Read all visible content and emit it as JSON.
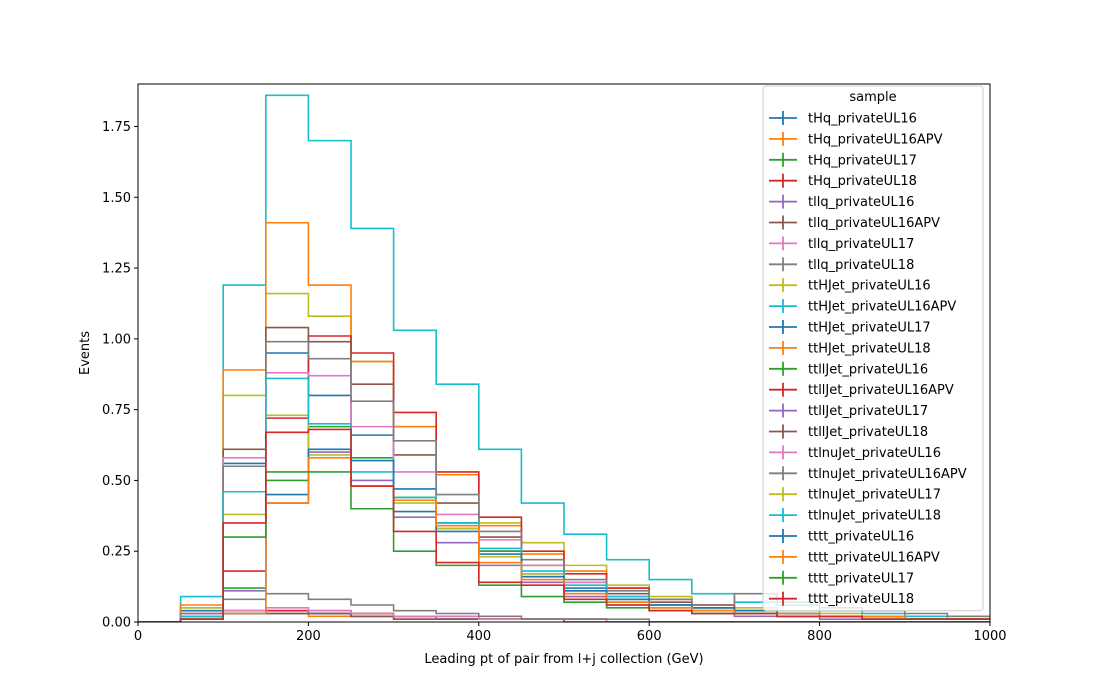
{
  "chart_data": {
    "type": "histogram-step",
    "xlabel": "Leading pt of pair from l+j collection (GeV)",
    "ylabel": "Events",
    "xlim": [
      0,
      1000
    ],
    "ylim": [
      0,
      1.9
    ],
    "x_ticks": [
      0,
      200,
      400,
      600,
      800,
      1000
    ],
    "y_ticks": [
      0.0,
      0.25,
      0.5,
      0.75,
      1.0,
      1.25,
      1.5,
      1.75
    ],
    "x_tick_labels": [
      "0",
      "200",
      "400",
      "600",
      "800",
      "1000"
    ],
    "y_tick_labels": [
      "0.00",
      "0.25",
      "0.50",
      "0.75",
      "1.00",
      "1.25",
      "1.50",
      "1.75"
    ],
    "bin_edges": [
      0,
      50,
      100,
      150,
      200,
      250,
      300,
      350,
      400,
      450,
      500,
      550,
      600,
      650,
      700,
      750,
      800,
      850,
      900,
      950,
      1000
    ],
    "legend_title": "sample",
    "legend_position": "top-right",
    "grid": false,
    "series": [
      {
        "name": "tHq_privateUL16",
        "color": "#1f77b4",
        "values": [
          0,
          0.02,
          0.03,
          0.03,
          0.03,
          0.02,
          0.02,
          0.01,
          0.01,
          0.01,
          0.01,
          0,
          0,
          0,
          0,
          0,
          0,
          0,
          0,
          0
        ]
      },
      {
        "name": "tHq_privateUL16APV",
        "color": "#ff7f0e",
        "values": [
          0,
          0.02,
          0.03,
          0.03,
          0.02,
          0.02,
          0.01,
          0.01,
          0.01,
          0.01,
          0,
          0,
          0,
          0,
          0,
          0,
          0,
          0,
          0,
          0
        ]
      },
      {
        "name": "tHq_privateUL17",
        "color": "#2ca02c",
        "values": [
          0,
          0.02,
          0.04,
          0.04,
          0.03,
          0.03,
          0.02,
          0.01,
          0.01,
          0.01,
          0.01,
          0,
          0,
          0,
          0,
          0,
          0,
          0,
          0,
          0
        ]
      },
      {
        "name": "tHq_privateUL18",
        "color": "#d62728",
        "values": [
          0,
          0.03,
          0.04,
          0.04,
          0.04,
          0.03,
          0.02,
          0.02,
          0.01,
          0.01,
          0.01,
          0,
          0,
          0,
          0,
          0,
          0,
          0,
          0,
          0
        ]
      },
      {
        "name": "tllq_privateUL16",
        "color": "#9467bd",
        "values": [
          0,
          0.02,
          0.03,
          0.03,
          0.03,
          0.02,
          0.02,
          0.01,
          0.01,
          0.01,
          0.01,
          0,
          0,
          0,
          0,
          0,
          0,
          0,
          0,
          0
        ]
      },
      {
        "name": "tllq_privateUL16APV",
        "color": "#8c564b",
        "values": [
          0,
          0.02,
          0.03,
          0.03,
          0.03,
          0.02,
          0.01,
          0.01,
          0.01,
          0.01,
          0,
          0,
          0,
          0,
          0,
          0,
          0,
          0,
          0,
          0
        ]
      },
      {
        "name": "tllq_privateUL17",
        "color": "#e377c2",
        "values": [
          0,
          0.03,
          0.04,
          0.05,
          0.04,
          0.03,
          0.02,
          0.02,
          0.01,
          0.01,
          0.01,
          0,
          0,
          0,
          0,
          0,
          0,
          0,
          0,
          0
        ]
      },
      {
        "name": "tllq_privateUL18",
        "color": "#7f7f7f",
        "values": [
          0,
          0.05,
          0.08,
          0.1,
          0.08,
          0.06,
          0.04,
          0.03,
          0.02,
          0.01,
          0.01,
          0.01,
          0,
          0,
          0,
          0,
          0,
          0,
          0,
          0
        ]
      },
      {
        "name": "ttHJet_privateUL16",
        "color": "#bcbd22",
        "values": [
          0,
          0.05,
          0.8,
          1.16,
          1.08,
          0.92,
          0.69,
          0.52,
          0.35,
          0.28,
          0.2,
          0.13,
          0.09,
          0.06,
          0.05,
          0.04,
          0.03,
          0.02,
          0.02,
          0.01
        ]
      },
      {
        "name": "ttHJet_privateUL16APV",
        "color": "#17becf",
        "values": [
          0,
          0.09,
          1.19,
          1.86,
          1.7,
          1.39,
          1.03,
          0.84,
          0.61,
          0.42,
          0.31,
          0.22,
          0.15,
          0.1,
          0.07,
          0.06,
          0.04,
          0.03,
          0.02,
          0.02
        ]
      },
      {
        "name": "ttHJet_privateUL17",
        "color": "#1f77b4",
        "values": [
          0,
          0.04,
          0.56,
          0.95,
          0.8,
          0.66,
          0.47,
          0.35,
          0.25,
          0.17,
          0.12,
          0.08,
          0.06,
          0.04,
          0.03,
          0.02,
          0.02,
          0.01,
          0.01,
          0.01
        ]
      },
      {
        "name": "ttHJet_privateUL18",
        "color": "#ff7f0e",
        "values": [
          0,
          0.06,
          0.89,
          1.41,
          1.19,
          0.92,
          0.69,
          0.52,
          0.34,
          0.24,
          0.18,
          0.12,
          0.08,
          0.06,
          0.04,
          0.03,
          0.02,
          0.02,
          0.01,
          0.01
        ]
      },
      {
        "name": "ttllJet_privateUL16",
        "color": "#2ca02c",
        "values": [
          0,
          0.01,
          0.12,
          0.5,
          0.69,
          0.58,
          0.44,
          0.33,
          0.25,
          0.16,
          0.11,
          0.07,
          0.05,
          0.04,
          0.03,
          0.02,
          0.02,
          0.01,
          0.01,
          0.01
        ]
      },
      {
        "name": "ttllJet_privateUL16APV",
        "color": "#d62728",
        "values": [
          0,
          0.02,
          0.18,
          0.72,
          1.01,
          0.95,
          0.74,
          0.53,
          0.37,
          0.25,
          0.17,
          0.12,
          0.08,
          0.06,
          0.04,
          0.03,
          0.02,
          0.02,
          0.01,
          0.01
        ]
      },
      {
        "name": "ttllJet_privateUL17",
        "color": "#9467bd",
        "values": [
          0,
          0.01,
          0.11,
          0.42,
          0.6,
          0.5,
          0.37,
          0.28,
          0.2,
          0.14,
          0.09,
          0.06,
          0.04,
          0.03,
          0.02,
          0.02,
          0.01,
          0.01,
          0.01,
          0.01
        ]
      },
      {
        "name": "ttllJet_privateUL18",
        "color": "#8c564b",
        "values": [
          0,
          0.02,
          0.61,
          1.04,
          0.99,
          0.84,
          0.59,
          0.42,
          0.3,
          0.2,
          0.14,
          0.1,
          0.07,
          0.05,
          0.04,
          0.03,
          0.02,
          0.02,
          0.01,
          0.01
        ]
      },
      {
        "name": "ttlnuJet_privateUL16",
        "color": "#e377c2",
        "values": [
          0,
          0.02,
          0.58,
          0.88,
          0.87,
          0.69,
          0.53,
          0.38,
          0.29,
          0.2,
          0.14,
          0.09,
          0.06,
          0.05,
          0.04,
          0.03,
          0.02,
          0.02,
          0.01,
          0.01
        ]
      },
      {
        "name": "ttlnuJet_privateUL16APV",
        "color": "#7f7f7f",
        "values": [
          0,
          0.03,
          0.55,
          0.99,
          0.93,
          0.78,
          0.64,
          0.45,
          0.32,
          0.22,
          0.15,
          0.11,
          0.08,
          0.06,
          0.1,
          0.07,
          0.05,
          0.04,
          0.03,
          0.02
        ]
      },
      {
        "name": "ttlnuJet_privateUL17",
        "color": "#bcbd22",
        "values": [
          0,
          0.02,
          0.38,
          0.73,
          0.59,
          0.48,
          0.42,
          0.33,
          0.23,
          0.17,
          0.1,
          0.08,
          0.06,
          0.05,
          0.04,
          0.03,
          0.02,
          0.02,
          0.01,
          0.01
        ]
      },
      {
        "name": "ttlnuJet_privateUL18",
        "color": "#17becf",
        "values": [
          0,
          0.02,
          0.46,
          0.86,
          0.7,
          0.53,
          0.44,
          0.35,
          0.26,
          0.18,
          0.13,
          0.09,
          0.06,
          0.05,
          0.04,
          0.03,
          0.02,
          0.02,
          0.01,
          0.01
        ]
      },
      {
        "name": "tttt_privateUL16",
        "color": "#1f77b4",
        "values": [
          0,
          0.01,
          0.03,
          0.45,
          0.61,
          0.57,
          0.39,
          0.32,
          0.24,
          0.16,
          0.11,
          0.08,
          0.06,
          0.05,
          0.04,
          0.03,
          0.02,
          0.02,
          0.01,
          0.01
        ]
      },
      {
        "name": "tttt_privateUL16APV",
        "color": "#ff7f0e",
        "values": [
          0,
          0.01,
          0.03,
          0.42,
          0.58,
          0.48,
          0.43,
          0.34,
          0.21,
          0.15,
          0.1,
          0.07,
          0.05,
          0.04,
          0.03,
          0.03,
          0.02,
          0.02,
          0.01,
          0.01
        ]
      },
      {
        "name": "tttt_privateUL17",
        "color": "#2ca02c",
        "values": [
          0,
          0.01,
          0.3,
          0.53,
          0.53,
          0.4,
          0.25,
          0.2,
          0.13,
          0.09,
          0.07,
          0.05,
          0.04,
          0.03,
          0.03,
          0.02,
          0.02,
          0.01,
          0.01,
          0.01
        ]
      },
      {
        "name": "tttt_privateUL18",
        "color": "#d62728",
        "values": [
          0,
          0.01,
          0.35,
          0.67,
          0.68,
          0.48,
          0.32,
          0.21,
          0.14,
          0.13,
          0.08,
          0.06,
          0.04,
          0.03,
          0.03,
          0.02,
          0.02,
          0.01,
          0.01,
          0.01
        ]
      }
    ]
  }
}
